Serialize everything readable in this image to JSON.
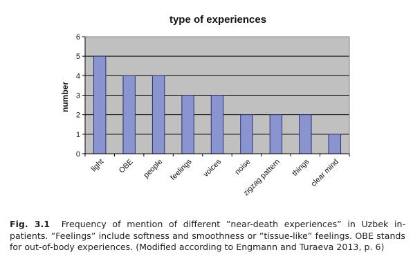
{
  "chart_data": {
    "type": "bar",
    "title": "type of experiences",
    "xlabel": "",
    "ylabel": "number",
    "categories": [
      "light",
      "OBE",
      "people",
      "feelings",
      "voices",
      "noise",
      "zigzag pattern",
      "things",
      "clear mind"
    ],
    "values": [
      5,
      4,
      4,
      3,
      3,
      2,
      2,
      2,
      1
    ],
    "ylim": [
      0,
      6
    ],
    "yticks": [
      0,
      1,
      2,
      3,
      4,
      5,
      6
    ],
    "grid": true,
    "legend": "none",
    "colors": {
      "plot_background": "#c0c0c0",
      "bar_fill": "#8a94cf",
      "bar_stroke": "#2b2f6e",
      "gridline": "#000000"
    }
  },
  "caption": {
    "label": "Fig. 3.1",
    "text": "Frequency of mention of different ”near-death experiences” in Uzbek in-patients. ”Feelings” include softness and smoothness or ”tissue-like” feelings. OBE stands for out-of-body experiences. (Modified according to Engmann and Turaeva 2013, p. 6)"
  }
}
